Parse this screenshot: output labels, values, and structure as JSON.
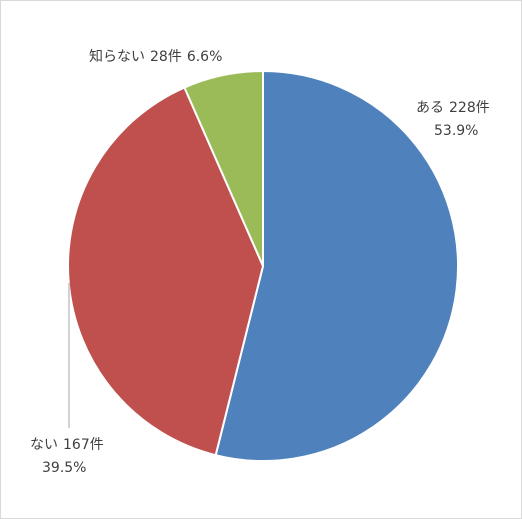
{
  "chart_data": {
    "type": "pie",
    "start_angle_deg": 0,
    "direction": "clockwise",
    "slices": [
      {
        "label": "ある",
        "count": "228件",
        "count_value": 228,
        "percent": "53.9%",
        "value": 53.9,
        "color": "#4F81BD"
      },
      {
        "label": "ない",
        "count": "167件",
        "count_value": 167,
        "percent": "39.5%",
        "value": 39.5,
        "color": "#C0504D"
      },
      {
        "label": "知らない",
        "count": "28件",
        "count_value": 28,
        "percent": "6.6%",
        "value": 6.6,
        "color": "#9BBB59"
      }
    ],
    "legend": "none"
  }
}
